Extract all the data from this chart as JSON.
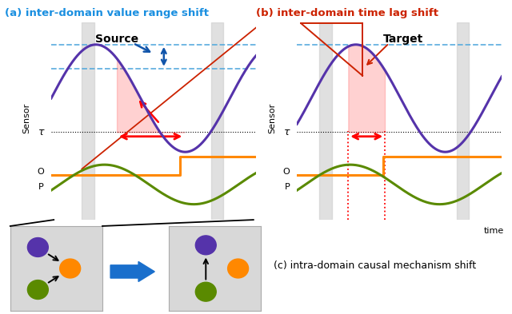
{
  "title_a": "(a) inter-domain value range shift",
  "title_b": "(b) inter-domain time lag shift",
  "title_c": "(c) intra-domain causal mechanism shift",
  "color_title_a": "#1a8fe0",
  "color_title_b": "#cc2200",
  "color_purple": "#5533aa",
  "color_orange": "#ff8800",
  "color_green": "#5a8a00",
  "color_blue_dashed": "#55aadd",
  "color_blue_arrow": "#1155aa",
  "color_red": "#ff0000",
  "color_red_line": "#cc2200",
  "color_gray_bar": "#cccccc",
  "color_causal_bg": "#d8d8d8",
  "color_big_arrow": "#1a6fcc",
  "label_source": "Source",
  "label_target": "Target",
  "label_sensor": "Sensor",
  "label_tau": "τ",
  "label_O": "O",
  "label_P": "P",
  "label_time": "time",
  "fig_width": 6.4,
  "fig_height": 3.93,
  "dpi": 100
}
